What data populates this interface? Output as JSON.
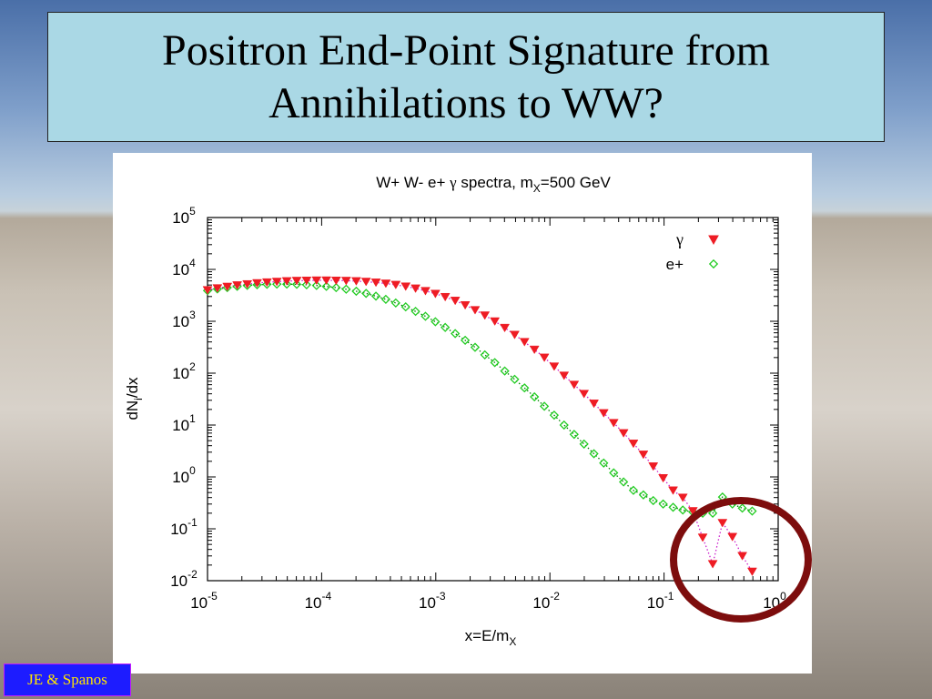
{
  "slide": {
    "title": "Positron End-Point Signature from Annihilations to WW?",
    "credit": "JE & Spanos"
  },
  "colors": {
    "title_bg": "#aad8e5",
    "gamma": "#ee1c24",
    "positron": "#22cc22",
    "gamma_line": "#cc22cc",
    "positron_line": "#008000",
    "highlight_ring": "#7d0d0d",
    "credit_bg": "#1d1cff",
    "credit_text": "#ffe600"
  },
  "chart_data": {
    "type": "scatter",
    "title_parts": [
      "W+ W-   e+  ",
      "γ",
      " spectra, m",
      "X",
      "=500 GeV"
    ],
    "xlabel_parts": [
      "x=E/m",
      "X"
    ],
    "ylabel_parts": [
      "dN",
      "i",
      "/dx"
    ],
    "xscale": "log",
    "yscale": "log",
    "xlim": [
      1e-05,
      1
    ],
    "ylim": [
      0.01,
      100000
    ],
    "xticks": [
      {
        "base": "10",
        "exp": "-5",
        "value": 1e-05
      },
      {
        "base": "10",
        "exp": "-4",
        "value": 0.0001
      },
      {
        "base": "10",
        "exp": "-3",
        "value": 0.001
      },
      {
        "base": "10",
        "exp": "-2",
        "value": 0.01
      },
      {
        "base": "10",
        "exp": "-1",
        "value": 0.1
      },
      {
        "base": "10",
        "exp": "0",
        "value": 1
      }
    ],
    "yticks": [
      {
        "base": "10",
        "exp": "-2",
        "value": 0.01
      },
      {
        "base": "10",
        "exp": "-1",
        "value": 0.1
      },
      {
        "base": "10",
        "exp": "0",
        "value": 1
      },
      {
        "base": "10",
        "exp": "1",
        "value": 10
      },
      {
        "base": "10",
        "exp": "2",
        "value": 100
      },
      {
        "base": "10",
        "exp": "3",
        "value": 1000
      },
      {
        "base": "10",
        "exp": "4",
        "value": 10000
      },
      {
        "base": "10",
        "exp": "5",
        "value": 100000
      }
    ],
    "grid": false,
    "legend": "top-right",
    "series": [
      {
        "name": "γ",
        "marker": "filled-down-triangle",
        "x": [
          1e-05,
          1.22e-05,
          1.49e-05,
          1.82e-05,
          2.23e-05,
          2.72e-05,
          3.32e-05,
          4.05e-05,
          4.95e-05,
          6.05e-05,
          7.38e-05,
          9.02e-05,
          0.00011,
          0.000134,
          0.000164,
          0.000201,
          0.000245,
          0.000299,
          0.000365,
          0.000446,
          0.000545,
          0.000665,
          0.000812,
          0.000992,
          0.00121,
          0.00148,
          0.00181,
          0.00221,
          0.00269,
          0.00329,
          0.00402,
          0.00491,
          0.00599,
          0.00732,
          0.00894,
          0.0109,
          0.0133,
          0.0163,
          0.0199,
          0.0243,
          0.0296,
          0.0362,
          0.0442,
          0.0539,
          0.0659,
          0.0804,
          0.0982,
          0.12,
          0.146,
          0.179,
          0.218,
          0.267,
          0.325,
          0.397,
          0.485,
          0.592
        ],
        "y": [
          4000,
          4350,
          4650,
          4950,
          5200,
          5450,
          5650,
          5800,
          5950,
          6050,
          6100,
          6150,
          6150,
          6100,
          6050,
          5950,
          5800,
          5600,
          5350,
          5050,
          4700,
          4300,
          3850,
          3400,
          2950,
          2500,
          2050,
          1650,
          1300,
          1000,
          750,
          550,
          400,
          285,
          200,
          135,
          90,
          60,
          40,
          26,
          17,
          11,
          7,
          4.4,
          2.7,
          1.6,
          0.95,
          0.55,
          0.4,
          0.22,
          0.068,
          0.021,
          0.13,
          0.07,
          0.03,
          0.015
        ]
      },
      {
        "name": "e+",
        "marker": "open-diamond",
        "x": [
          1e-05,
          1.22e-05,
          1.49e-05,
          1.82e-05,
          2.23e-05,
          2.72e-05,
          3.32e-05,
          4.05e-05,
          4.95e-05,
          6.05e-05,
          7.38e-05,
          9.02e-05,
          0.00011,
          0.000134,
          0.000164,
          0.000201,
          0.000245,
          0.000299,
          0.000365,
          0.000446,
          0.000545,
          0.000665,
          0.000812,
          0.000992,
          0.00121,
          0.00148,
          0.00181,
          0.00221,
          0.00269,
          0.00329,
          0.00402,
          0.00491,
          0.00599,
          0.00732,
          0.00894,
          0.0109,
          0.0133,
          0.0163,
          0.0199,
          0.0243,
          0.0296,
          0.0362,
          0.0442,
          0.0539,
          0.0659,
          0.0804,
          0.0982,
          0.12,
          0.146,
          0.179,
          0.218,
          0.267,
          0.325,
          0.397,
          0.485,
          0.592
        ],
        "y": [
          3900,
          4200,
          4450,
          4700,
          4900,
          5050,
          5150,
          5200,
          5200,
          5150,
          5050,
          4900,
          4700,
          4450,
          4150,
          3800,
          3450,
          3050,
          2650,
          2250,
          1900,
          1550,
          1250,
          980,
          760,
          580,
          430,
          315,
          225,
          160,
          110,
          76,
          52,
          35,
          23,
          15.5,
          10,
          6.6,
          4.3,
          2.8,
          1.85,
          1.2,
          0.8,
          0.55,
          0.45,
          0.35,
          0.3,
          0.26,
          0.23,
          0.21,
          0.2,
          0.2,
          0.41,
          0.3,
          0.25,
          0.22
        ]
      }
    ]
  }
}
